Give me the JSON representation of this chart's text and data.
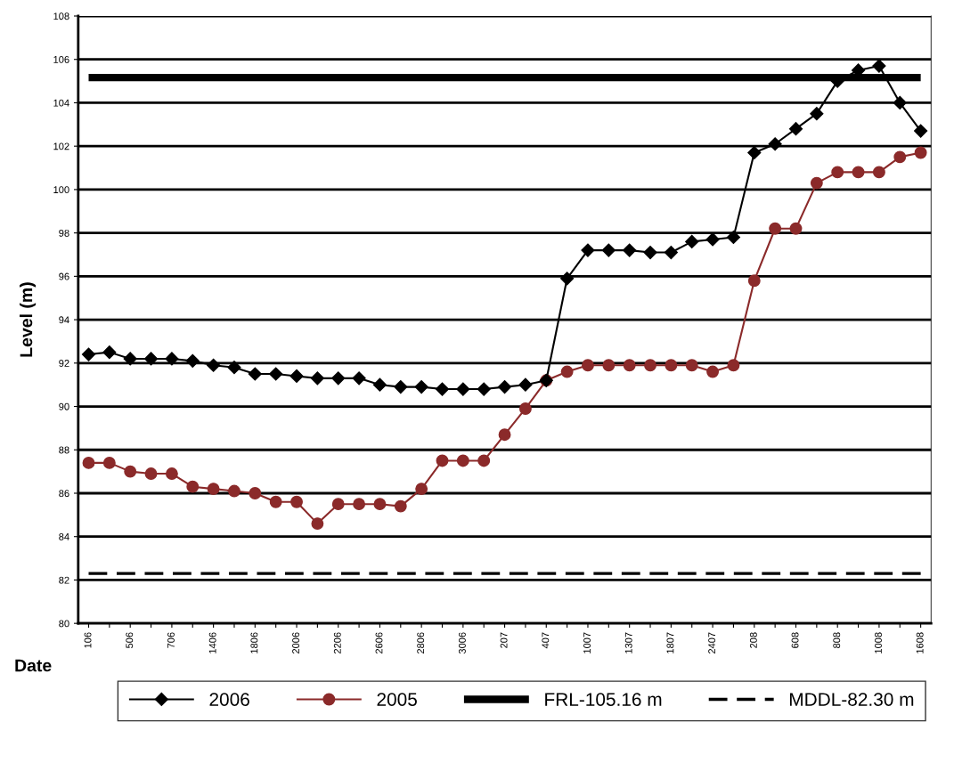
{
  "chart_data": {
    "type": "line",
    "xlabel": "Date",
    "ylabel": "Level (m)",
    "categories": [
      "106",
      null,
      "506",
      null,
      "706",
      null,
      "1406",
      null,
      "1806",
      null,
      "2006",
      null,
      "2206",
      null,
      "2606",
      null,
      "2806",
      null,
      "3006",
      null,
      "207",
      null,
      "407",
      null,
      "1007",
      null,
      "1307",
      null,
      "1807",
      null,
      "2407",
      null,
      "208",
      null,
      "608",
      null,
      "808",
      null,
      "1008",
      null,
      "1608"
    ],
    "series": [
      {
        "name": "2006",
        "color": "#000000",
        "marker": "diamond",
        "line_style": "solid",
        "values": [
          92.4,
          92.5,
          92.2,
          92.2,
          92.2,
          92.1,
          91.9,
          91.8,
          91.5,
          91.5,
          91.4,
          91.3,
          91.3,
          91.3,
          91.0,
          90.9,
          90.9,
          90.8,
          90.8,
          90.8,
          90.9,
          91.0,
          91.2,
          95.9,
          97.2,
          97.2,
          97.2,
          97.1,
          97.1,
          97.6,
          97.7,
          97.8,
          101.7,
          102.1,
          102.8,
          103.5,
          105.0,
          105.5,
          105.7,
          104.0,
          102.7
        ]
      },
      {
        "name": "2005",
        "color": "#8b2a2a",
        "marker": "circle",
        "line_style": "solid",
        "values": [
          87.4,
          87.4,
          87.0,
          86.9,
          86.9,
          86.3,
          86.2,
          86.1,
          86.0,
          85.6,
          85.6,
          84.6,
          85.5,
          85.5,
          85.5,
          85.4,
          86.2,
          87.5,
          87.5,
          87.5,
          88.7,
          89.9,
          91.2,
          91.6,
          91.9,
          91.9,
          91.9,
          91.9,
          91.9,
          91.9,
          91.6,
          91.9,
          95.8,
          98.2,
          98.2,
          100.3,
          100.8,
          100.8,
          100.8,
          101.5,
          101.7
        ]
      },
      {
        "name": "FRL-105.16 m",
        "color": "#000000",
        "marker": "none",
        "line_style": "solid",
        "values": [
          105.16,
          105.16,
          105.16,
          105.16,
          105.16,
          105.16,
          105.16,
          105.16,
          105.16,
          105.16,
          105.16,
          105.16,
          105.16,
          105.16,
          105.16,
          105.16,
          105.16,
          105.16,
          105.16,
          105.16,
          105.16,
          105.16,
          105.16,
          105.16,
          105.16,
          105.16,
          105.16,
          105.16,
          105.16,
          105.16,
          105.16,
          105.16,
          105.16,
          105.16,
          105.16,
          105.16,
          105.16,
          105.16,
          105.16,
          105.16,
          105.16
        ]
      },
      {
        "name": "MDDL-82.30 m",
        "color": "#000000",
        "marker": "none",
        "line_style": "dashed",
        "values": [
          82.3,
          82.3,
          82.3,
          82.3,
          82.3,
          82.3,
          82.3,
          82.3,
          82.3,
          82.3,
          82.3,
          82.3,
          82.3,
          82.3,
          82.3,
          82.3,
          82.3,
          82.3,
          82.3,
          82.3,
          82.3,
          82.3,
          82.3,
          82.3,
          82.3,
          82.3,
          82.3,
          82.3,
          82.3,
          82.3,
          82.3,
          82.3,
          82.3,
          82.3,
          82.3,
          82.3,
          82.3,
          82.3,
          82.3,
          82.3,
          82.3
        ]
      }
    ],
    "ylim": [
      80,
      108
    ],
    "yticks": [
      80,
      82,
      84,
      86,
      88,
      90,
      92,
      94,
      96,
      98,
      100,
      102,
      104,
      106,
      108
    ],
    "grid": "y",
    "legend": "bottom"
  }
}
